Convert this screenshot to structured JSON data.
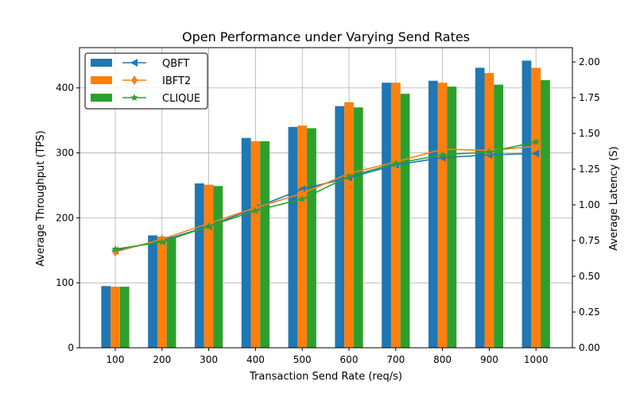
{
  "chart_data": {
    "type": "bar",
    "title": "Open Performance under Varying Send Rates",
    "xlabel": "Transaction Send Rate (req/s)",
    "ylabel": "Average Throughput (TPS)",
    "y2label": "Average Latency (S)",
    "categories": [
      "100",
      "200",
      "300",
      "400",
      "500",
      "600",
      "700",
      "800",
      "900",
      "1000"
    ],
    "ylim": [
      0,
      462
    ],
    "yticks": [
      0,
      100,
      200,
      300,
      400
    ],
    "y2lim": [
      0,
      2.1
    ],
    "y2ticks": [
      "0.00",
      "0.25",
      "0.50",
      "0.75",
      "1.00",
      "1.25",
      "1.50",
      "1.75",
      "2.00"
    ],
    "grid": true,
    "legend_position": "top-left",
    "series": [
      {
        "name": "QBFT",
        "color": "#1f77b4",
        "marker": "triangle-left",
        "throughput": [
          95,
          173,
          253,
          323,
          340,
          372,
          408,
          411,
          431,
          442
        ],
        "latency": [
          0.68,
          0.75,
          0.85,
          0.98,
          1.11,
          1.19,
          1.28,
          1.33,
          1.35,
          1.36
        ]
      },
      {
        "name": "IBFT2",
        "color": "#ff7f0e",
        "marker": "thin-diamond",
        "throughput": [
          94,
          171,
          251,
          318,
          342,
          378,
          408,
          408,
          423,
          431
        ],
        "latency": [
          0.67,
          0.76,
          0.87,
          0.98,
          1.08,
          1.22,
          1.3,
          1.39,
          1.38,
          1.41
        ]
      },
      {
        "name": "CLIQUE",
        "color": "#2ca02c",
        "marker": "star",
        "throughput": [
          94,
          171,
          249,
          318,
          338,
          370,
          391,
          402,
          405,
          412
        ],
        "latency": [
          0.69,
          0.74,
          0.85,
          0.96,
          1.04,
          1.2,
          1.29,
          1.35,
          1.37,
          1.44
        ]
      }
    ]
  }
}
